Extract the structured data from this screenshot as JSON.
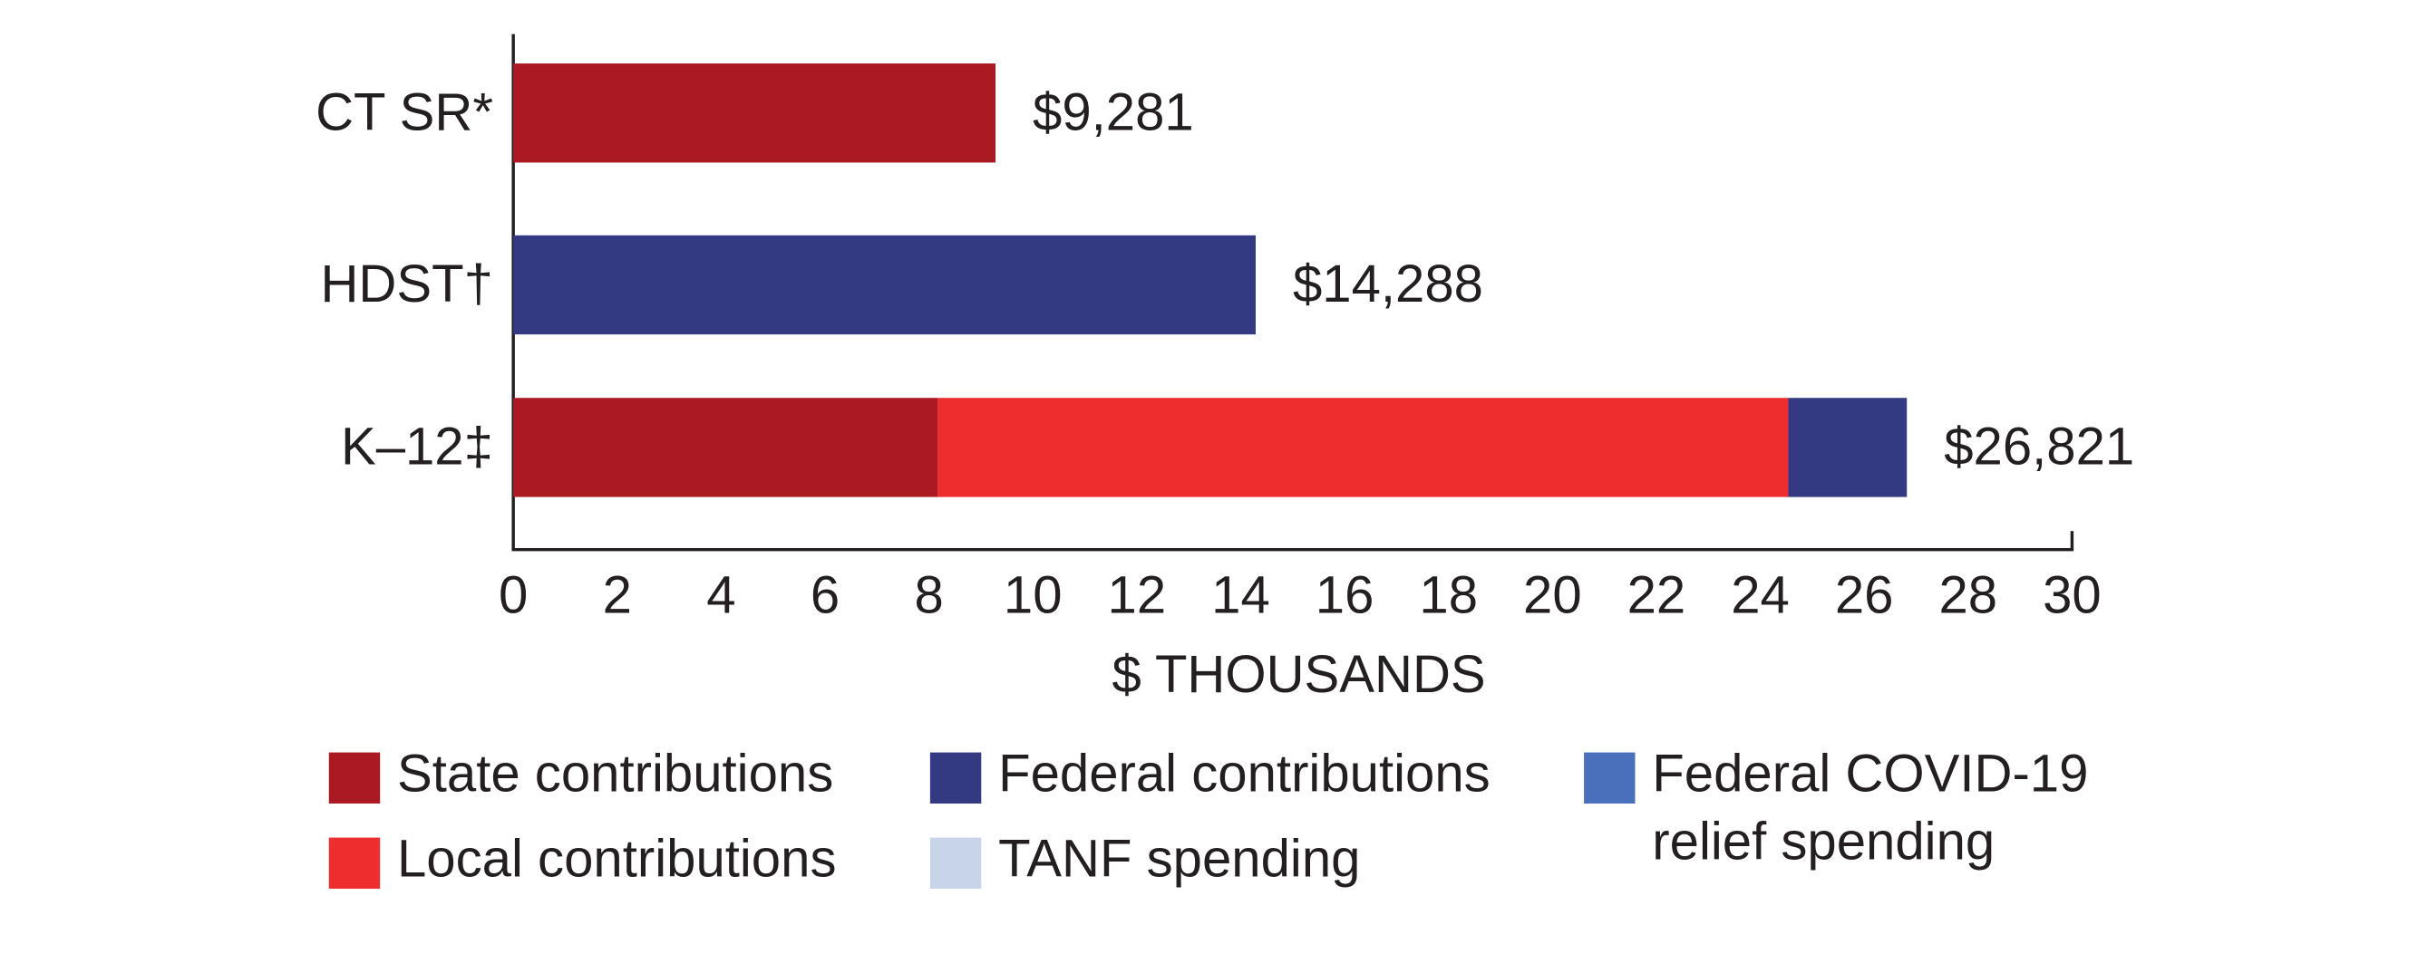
{
  "chart_data": {
    "type": "stacked_bar_horizontal",
    "x_label": "$ THOUSANDS",
    "categories": [
      "CT SR*",
      "HDST†",
      "K–12‡"
    ],
    "series": [
      {
        "name": "State contributions",
        "color": "#ab1a23",
        "values": [
          9.281,
          null,
          8.17
        ]
      },
      {
        "name": "Local contributions",
        "color": "#ee2d2e",
        "values": [
          null,
          null,
          16.37
        ]
      },
      {
        "name": "Federal contributions",
        "color": "#333a82",
        "values": [
          null,
          14.288,
          2.281
        ]
      },
      {
        "name": "TANF spending",
        "color": "#c8d4ea",
        "values": [
          null,
          null,
          null
        ]
      },
      {
        "name": "Federal COVID-19 relief spending",
        "color": "#4a6fbb",
        "values": [
          null,
          null,
          null
        ]
      }
    ],
    "totals": [
      9.281,
      14.288,
      26.821
    ],
    "total_labels": [
      "$9,281",
      "$14,288",
      "$26,821"
    ],
    "xlim": [
      0,
      30
    ],
    "xticks": [
      0,
      2,
      4,
      6,
      8,
      10,
      12,
      14,
      16,
      18,
      20,
      22,
      24,
      26,
      28,
      30
    ]
  }
}
